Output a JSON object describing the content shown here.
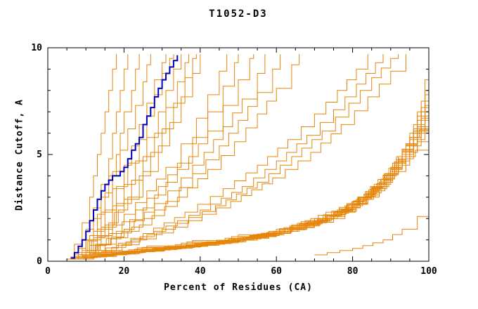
{
  "chart_data": {
    "type": "line",
    "title": "T1052-D3",
    "xlabel": "Percent of Residues (CA)",
    "ylabel": "Distance Cutoff, A",
    "xlim": [
      0,
      100
    ],
    "ylim": [
      0,
      10
    ],
    "x_major_ticks": [
      0,
      20,
      40,
      60,
      80,
      100
    ],
    "x_minor_step": 5,
    "y_major_ticks": [
      0,
      5,
      10
    ],
    "y_minor_step": 1,
    "grid": false,
    "legend": "none",
    "colors": {
      "model_line": "#e5860b",
      "highlight_line": "#0000bb",
      "axis": "#000000",
      "background": "#ffffff",
      "text": "#000000"
    },
    "highlight_series": {
      "name": "highlighted-model",
      "pts": [
        [
          6,
          0.15
        ],
        [
          7,
          0.4
        ],
        [
          8,
          0.7
        ],
        [
          9,
          1.0
        ],
        [
          10,
          1.4
        ],
        [
          11,
          1.9
        ],
        [
          12,
          2.4
        ],
        [
          13,
          2.9
        ],
        [
          14,
          3.3
        ],
        [
          15,
          3.6
        ],
        [
          16,
          3.8
        ],
        [
          17,
          4.0
        ],
        [
          19,
          4.2
        ],
        [
          20,
          4.4
        ],
        [
          21,
          4.8
        ],
        [
          22,
          5.2
        ],
        [
          23,
          5.5
        ],
        [
          24,
          5.8
        ],
        [
          25,
          6.4
        ],
        [
          26,
          6.8
        ],
        [
          27,
          7.2
        ],
        [
          28,
          7.7
        ],
        [
          29,
          8.1
        ],
        [
          30,
          8.5
        ],
        [
          31,
          8.8
        ],
        [
          32,
          9.1
        ],
        [
          33,
          9.4
        ],
        [
          34,
          9.65
        ]
      ]
    },
    "series": [
      [
        [
          5,
          0.1
        ],
        [
          7,
          0.8
        ],
        [
          9,
          1.8
        ],
        [
          11,
          3
        ],
        [
          12,
          4
        ],
        [
          13,
          5
        ],
        [
          14,
          6
        ],
        [
          15,
          7
        ],
        [
          16,
          8
        ],
        [
          17,
          9
        ],
        [
          18,
          9.7
        ]
      ],
      [
        [
          6,
          0.1
        ],
        [
          8,
          0.6
        ],
        [
          10,
          1.5
        ],
        [
          12,
          2.5
        ],
        [
          14,
          3.6
        ],
        [
          16,
          4.8
        ],
        [
          17,
          6
        ],
        [
          18,
          7
        ],
        [
          19,
          8
        ],
        [
          20,
          9
        ],
        [
          21,
          9.7
        ]
      ],
      [
        [
          6,
          0.2
        ],
        [
          9,
          1
        ],
        [
          12,
          2
        ],
        [
          14,
          3
        ],
        [
          16,
          4
        ],
        [
          18,
          5
        ],
        [
          19,
          6
        ],
        [
          20,
          7
        ],
        [
          22,
          8
        ],
        [
          23,
          9
        ],
        [
          24,
          9.7
        ]
      ],
      [
        [
          7,
          0.2
        ],
        [
          10,
          1
        ],
        [
          13,
          2.2
        ],
        [
          15,
          3.2
        ],
        [
          17,
          4.2
        ],
        [
          19,
          5.2
        ],
        [
          21,
          6.2
        ],
        [
          23,
          7.3
        ],
        [
          25,
          8.4
        ],
        [
          26,
          9.2
        ],
        [
          27,
          9.7
        ]
      ],
      [
        [
          7,
          0.3
        ],
        [
          11,
          1.2
        ],
        [
          14,
          2.3
        ],
        [
          17,
          3.4
        ],
        [
          20,
          4.5
        ],
        [
          22,
          5.4
        ],
        [
          24,
          6.4
        ],
        [
          26,
          7.4
        ],
        [
          28,
          8.5
        ],
        [
          30,
          9.3
        ],
        [
          31,
          9.7
        ]
      ],
      [
        [
          8,
          0.3
        ],
        [
          12,
          1.4
        ],
        [
          15,
          2.4
        ],
        [
          18,
          3.5
        ],
        [
          21,
          4.6
        ],
        [
          24,
          5.7
        ],
        [
          26,
          6.8
        ],
        [
          28,
          7.8
        ],
        [
          30,
          8.8
        ],
        [
          32,
          9.5
        ],
        [
          33,
          9.7
        ]
      ],
      [
        [
          8,
          0.4
        ],
        [
          13,
          1.5
        ],
        [
          17,
          2.6
        ],
        [
          20,
          3.6
        ],
        [
          23,
          4.7
        ],
        [
          26,
          5.8
        ],
        [
          29,
          7
        ],
        [
          31,
          8
        ],
        [
          33,
          9
        ],
        [
          35,
          9.7
        ]
      ],
      [
        [
          9,
          0.4
        ],
        [
          14,
          1.6
        ],
        [
          18,
          2.7
        ],
        [
          22,
          3.8
        ],
        [
          25,
          4.9
        ],
        [
          28,
          6
        ],
        [
          31,
          7.2
        ],
        [
          34,
          8.4
        ],
        [
          36,
          9.3
        ],
        [
          37,
          9.7
        ]
      ],
      [
        [
          9,
          0.5
        ],
        [
          15,
          1.7
        ],
        [
          20,
          2.9
        ],
        [
          24,
          4
        ],
        [
          27,
          5.1
        ],
        [
          30,
          6.2
        ],
        [
          33,
          7.4
        ],
        [
          36,
          8.6
        ],
        [
          38,
          9.5
        ],
        [
          39,
          9.7
        ]
      ],
      [
        [
          10,
          0.5
        ],
        [
          16,
          1.8
        ],
        [
          21,
          3
        ],
        [
          25,
          4.2
        ],
        [
          29,
          5.4
        ],
        [
          32,
          6.5
        ],
        [
          35,
          7.7
        ],
        [
          38,
          8.8
        ],
        [
          40,
          9.7
        ]
      ],
      [
        [
          8,
          0.3
        ],
        [
          14,
          1.2
        ],
        [
          20,
          2.2
        ],
        [
          26,
          3.3
        ],
        [
          31,
          4.4
        ],
        [
          35,
          5.5
        ],
        [
          39,
          6.7
        ],
        [
          42,
          7.8
        ],
        [
          45,
          8.9
        ],
        [
          47,
          9.7
        ]
      ],
      [
        [
          9,
          0.3
        ],
        [
          16,
          1.3
        ],
        [
          23,
          2.4
        ],
        [
          29,
          3.5
        ],
        [
          34,
          4.6
        ],
        [
          38,
          5.8
        ],
        [
          42,
          7
        ],
        [
          46,
          8.2
        ],
        [
          49,
          9.3
        ],
        [
          50,
          9.7
        ]
      ],
      [
        [
          10,
          0.4
        ],
        [
          18,
          1.4
        ],
        [
          25,
          2.5
        ],
        [
          31,
          3.7
        ],
        [
          37,
          4.9
        ],
        [
          42,
          6.1
        ],
        [
          46,
          7.3
        ],
        [
          50,
          8.5
        ],
        [
          53,
          9.5
        ],
        [
          54,
          9.7
        ]
      ],
      [
        [
          10,
          0.4
        ],
        [
          20,
          1.5
        ],
        [
          28,
          2.7
        ],
        [
          35,
          3.9
        ],
        [
          41,
          5.1
        ],
        [
          46,
          6.3
        ],
        [
          51,
          7.6
        ],
        [
          55,
          8.8
        ],
        [
          57,
          9.7
        ]
      ],
      [
        [
          11,
          0.5
        ],
        [
          22,
          1.6
        ],
        [
          31,
          2.8
        ],
        [
          38,
          4.1
        ],
        [
          45,
          5.4
        ],
        [
          50,
          6.6
        ],
        [
          55,
          7.9
        ],
        [
          59,
          9
        ],
        [
          61,
          9.7
        ]
      ],
      [
        [
          12,
          0.5
        ],
        [
          24,
          1.7
        ],
        [
          34,
          3
        ],
        [
          42,
          4.3
        ],
        [
          49,
          5.6
        ],
        [
          55,
          6.9
        ],
        [
          60,
          8.1
        ],
        [
          64,
          9.2
        ],
        [
          66,
          9.7
        ]
      ],
      [
        [
          12,
          0.4
        ],
        [
          25,
          1.3
        ],
        [
          36,
          2.3
        ],
        [
          46,
          3.4
        ],
        [
          55,
          4.5
        ],
        [
          63,
          5.7
        ],
        [
          70,
          6.9
        ],
        [
          76,
          8
        ],
        [
          81,
          9
        ],
        [
          84,
          9.7
        ]
      ],
      [
        [
          13,
          0.4
        ],
        [
          28,
          1.4
        ],
        [
          40,
          2.4
        ],
        [
          51,
          3.5
        ],
        [
          60,
          4.7
        ],
        [
          68,
          5.9
        ],
        [
          75,
          7.1
        ],
        [
          81,
          8.3
        ],
        [
          86,
          9.3
        ],
        [
          88,
          9.7
        ]
      ],
      [
        [
          14,
          0.5
        ],
        [
          30,
          1.5
        ],
        [
          44,
          2.6
        ],
        [
          55,
          3.7
        ],
        [
          64,
          4.9
        ],
        [
          72,
          6.1
        ],
        [
          79,
          7.4
        ],
        [
          85,
          8.6
        ],
        [
          90,
          9.5
        ],
        [
          92,
          9.7
        ]
      ],
      [
        [
          15,
          0.5
        ],
        [
          33,
          1.6
        ],
        [
          48,
          2.8
        ],
        [
          59,
          3.9
        ],
        [
          69,
          5.1
        ],
        [
          77,
          6.4
        ],
        [
          84,
          7.7
        ],
        [
          90,
          8.9
        ],
        [
          94,
          9.7
        ]
      ],
      [
        [
          6,
          0.1
        ],
        [
          20,
          0.4
        ],
        [
          40,
          0.8
        ],
        [
          60,
          1.3
        ],
        [
          75,
          2
        ],
        [
          84,
          3
        ],
        [
          90,
          4.2
        ],
        [
          94,
          5.5
        ],
        [
          97,
          7
        ],
        [
          99,
          8.5
        ],
        [
          100,
          9.5
        ]
      ],
      [
        [
          6,
          0.1
        ],
        [
          22,
          0.45
        ],
        [
          44,
          0.9
        ],
        [
          64,
          1.5
        ],
        [
          78,
          2.3
        ],
        [
          86,
          3.4
        ],
        [
          92,
          4.7
        ],
        [
          95,
          6
        ],
        [
          98,
          7.5
        ],
        [
          100,
          9
        ]
      ],
      [
        [
          7,
          0.15
        ],
        [
          25,
          0.5
        ],
        [
          48,
          1
        ],
        [
          68,
          1.7
        ],
        [
          80,
          2.6
        ],
        [
          88,
          3.8
        ],
        [
          93,
          5
        ],
        [
          96,
          6.4
        ],
        [
          99,
          8
        ],
        [
          100,
          9.3
        ]
      ],
      [
        [
          7,
          0.15
        ],
        [
          28,
          0.55
        ],
        [
          52,
          1.1
        ],
        [
          70,
          1.9
        ],
        [
          82,
          2.9
        ],
        [
          89,
          4.1
        ],
        [
          94,
          5.4
        ],
        [
          97,
          6.8
        ],
        [
          100,
          8.6
        ]
      ],
      [
        [
          6,
          0.1
        ],
        [
          30,
          0.6
        ],
        [
          55,
          1.2
        ],
        [
          72,
          2
        ],
        [
          84,
          3.2
        ],
        [
          91,
          4.5
        ],
        [
          95,
          5.8
        ],
        [
          98,
          7.2
        ],
        [
          100,
          8.9
        ]
      ],
      [
        [
          7,
          0.2
        ],
        [
          32,
          0.65
        ],
        [
          58,
          1.3
        ],
        [
          75,
          2.2
        ],
        [
          85,
          3.4
        ],
        [
          92,
          4.8
        ],
        [
          96,
          6.2
        ],
        [
          99,
          7.8
        ],
        [
          100,
          9.1
        ]
      ],
      [
        [
          8,
          0.2
        ],
        [
          35,
          0.7
        ],
        [
          60,
          1.4
        ],
        [
          77,
          2.4
        ],
        [
          87,
          3.7
        ],
        [
          93,
          5.1
        ],
        [
          97,
          6.6
        ],
        [
          100,
          8.2
        ]
      ],
      [
        [
          8,
          0.2
        ],
        [
          38,
          0.75
        ],
        [
          63,
          1.5
        ],
        [
          79,
          2.5
        ],
        [
          88,
          3.9
        ],
        [
          94,
          5.4
        ],
        [
          98,
          7
        ],
        [
          100,
          8.7
        ]
      ],
      [
        [
          9,
          0.25
        ],
        [
          40,
          0.8
        ],
        [
          66,
          1.6
        ],
        [
          81,
          2.7
        ],
        [
          89,
          4.1
        ],
        [
          95,
          5.7
        ],
        [
          99,
          7.3
        ],
        [
          100,
          8.4
        ]
      ],
      [
        [
          9,
          0.25
        ],
        [
          42,
          0.85
        ],
        [
          68,
          1.7
        ],
        [
          82,
          2.9
        ],
        [
          90,
          4.3
        ],
        [
          96,
          6
        ],
        [
          100,
          7.8
        ]
      ],
      [
        [
          10,
          0.3
        ],
        [
          45,
          0.9
        ],
        [
          70,
          1.8
        ],
        [
          83,
          3.1
        ],
        [
          91,
          4.6
        ],
        [
          97,
          6.3
        ],
        [
          100,
          7.5
        ]
      ],
      [
        [
          10,
          0.3
        ],
        [
          48,
          1
        ],
        [
          72,
          2
        ],
        [
          85,
          3.3
        ],
        [
          92,
          4.9
        ],
        [
          98,
          6.7
        ],
        [
          100,
          7.2
        ]
      ],
      [
        [
          11,
          0.3
        ],
        [
          50,
          1.05
        ],
        [
          74,
          2.1
        ],
        [
          86,
          3.5
        ],
        [
          93,
          5.2
        ],
        [
          99,
          7
        ],
        [
          100,
          7.9
        ]
      ],
      [
        [
          11,
          0.35
        ],
        [
          52,
          1.1
        ],
        [
          76,
          2.3
        ],
        [
          87,
          3.7
        ],
        [
          94,
          5.5
        ],
        [
          100,
          6.9
        ]
      ],
      [
        [
          12,
          0.35
        ],
        [
          55,
          1.2
        ],
        [
          78,
          2.5
        ],
        [
          88,
          4
        ],
        [
          95,
          5.8
        ],
        [
          100,
          6.5
        ]
      ],
      [
        [
          12,
          0.4
        ],
        [
          58,
          1.3
        ],
        [
          80,
          2.7
        ],
        [
          90,
          4.4
        ],
        [
          96,
          6.1
        ],
        [
          100,
          6.9
        ]
      ],
      [
        [
          13,
          0.4
        ],
        [
          60,
          1.4
        ],
        [
          82,
          2.9
        ],
        [
          91,
          4.6
        ],
        [
          97,
          5.6
        ],
        [
          100,
          5.9
        ]
      ],
      [
        [
          14,
          0.45
        ],
        [
          62,
          1.5
        ],
        [
          84,
          3.1
        ],
        [
          93,
          4.9
        ],
        [
          100,
          5.5
        ]
      ],
      [
        [
          70,
          0.3
        ],
        [
          80,
          0.6
        ],
        [
          88,
          1
        ],
        [
          93,
          1.5
        ],
        [
          97,
          2.1
        ],
        [
          100,
          2.6
        ]
      ]
    ]
  }
}
